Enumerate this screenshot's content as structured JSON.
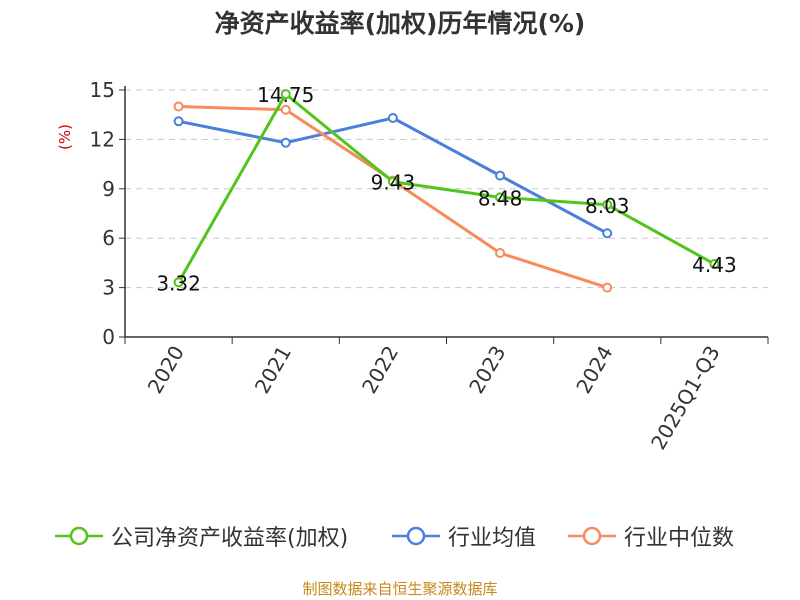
{
  "chart_data": {
    "type": "line",
    "title": "净资产收益率(加权)历年情况(%)",
    "ylabel": "(%)",
    "xlabel": "",
    "categories": [
      "2020",
      "2021",
      "2022",
      "2023",
      "2024",
      "2025Q1-Q3"
    ],
    "ylim": [
      0,
      15
    ],
    "yticks": [
      0,
      3,
      6,
      9,
      12,
      15
    ],
    "grid": true,
    "legend_position": "bottom",
    "series": [
      {
        "name": "公司净资产收益率(加权)",
        "color": "#52c41a",
        "values": [
          3.32,
          14.75,
          9.43,
          8.48,
          8.03,
          4.43
        ],
        "labels": [
          "3.32",
          "14.75",
          "9.43",
          "8.48",
          "8.03",
          "4.43"
        ]
      },
      {
        "name": "行业均值",
        "color": "#4a7fdc",
        "values": [
          13.1,
          11.8,
          13.3,
          9.8,
          6.3,
          null
        ]
      },
      {
        "name": "行业中位数",
        "color": "#f58c5a",
        "values": [
          14.0,
          13.8,
          9.5,
          5.1,
          3.0,
          null
        ]
      }
    ]
  },
  "source": "制图数据来自恒生聚源数据库"
}
